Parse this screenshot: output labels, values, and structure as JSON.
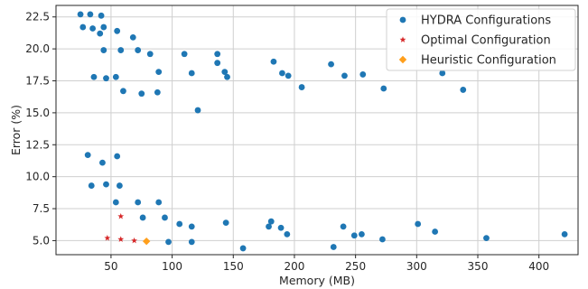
{
  "chart_data": {
    "type": "scatter",
    "title": "",
    "xlabel": "Memory (MB)",
    "ylabel": "Error (%)",
    "xlim": [
      5,
      432
    ],
    "ylim": [
      3.9,
      23.4
    ],
    "xticks": [
      50,
      100,
      150,
      200,
      250,
      300,
      350,
      400
    ],
    "yticks": [
      5.0,
      7.5,
      10.0,
      12.5,
      15.0,
      17.5,
      20.0,
      22.5
    ],
    "grid": true,
    "legend_position": "top-right",
    "series": [
      {
        "name": "HYDRA Configurations",
        "marker": "circle",
        "color": "#1f77b4",
        "points": [
          [
            25,
            22.7
          ],
          [
            33,
            22.7
          ],
          [
            42,
            22.6
          ],
          [
            27,
            21.7
          ],
          [
            35,
            21.6
          ],
          [
            41,
            21.2
          ],
          [
            44,
            21.7
          ],
          [
            55,
            21.4
          ],
          [
            68,
            20.9
          ],
          [
            44,
            19.9
          ],
          [
            58,
            19.9
          ],
          [
            72,
            19.9
          ],
          [
            82,
            19.6
          ],
          [
            110,
            19.6
          ],
          [
            137,
            19.6
          ],
          [
            137,
            18.9
          ],
          [
            143,
            18.2
          ],
          [
            89,
            18.2
          ],
          [
            116,
            18.1
          ],
          [
            36,
            17.8
          ],
          [
            46,
            17.7
          ],
          [
            54,
            17.8
          ],
          [
            145,
            17.8
          ],
          [
            183,
            19.0
          ],
          [
            190,
            18.1
          ],
          [
            195,
            17.9
          ],
          [
            206,
            17.0
          ],
          [
            230,
            18.8
          ],
          [
            241,
            17.9
          ],
          [
            256,
            18.0
          ],
          [
            273,
            16.9
          ],
          [
            321,
            18.1
          ],
          [
            338,
            16.8
          ],
          [
            60,
            16.7
          ],
          [
            75,
            16.5
          ],
          [
            88,
            16.6
          ],
          [
            121,
            15.2
          ],
          [
            31,
            11.7
          ],
          [
            55,
            11.6
          ],
          [
            43,
            11.1
          ],
          [
            34,
            9.3
          ],
          [
            46,
            9.4
          ],
          [
            57,
            9.3
          ],
          [
            54,
            8.0
          ],
          [
            72,
            8.0
          ],
          [
            89,
            8.0
          ],
          [
            76,
            6.8
          ],
          [
            94,
            6.8
          ],
          [
            106,
            6.3
          ],
          [
            116,
            6.1
          ],
          [
            144,
            6.4
          ],
          [
            179,
            6.1
          ],
          [
            181,
            6.5
          ],
          [
            189,
            6.0
          ],
          [
            194,
            5.5
          ],
          [
            240,
            6.1
          ],
          [
            97,
            4.9
          ],
          [
            116,
            4.9
          ],
          [
            158,
            4.4
          ],
          [
            232,
            4.5
          ],
          [
            249,
            5.4
          ],
          [
            255,
            5.5
          ],
          [
            272,
            5.1
          ],
          [
            301,
            6.3
          ],
          [
            315,
            5.7
          ],
          [
            357,
            5.2
          ],
          [
            421,
            5.5
          ]
        ]
      },
      {
        "name": "Optimal Configuration",
        "marker": "star",
        "color": "#d62728",
        "points": [
          [
            47,
            5.2
          ],
          [
            58,
            5.1
          ],
          [
            69,
            5.0
          ],
          [
            58,
            6.9
          ]
        ]
      },
      {
        "name": "Heuristic Configuration",
        "marker": "diamond",
        "color": "#ff9f1c",
        "points": [
          [
            79,
            4.95
          ]
        ]
      }
    ]
  }
}
